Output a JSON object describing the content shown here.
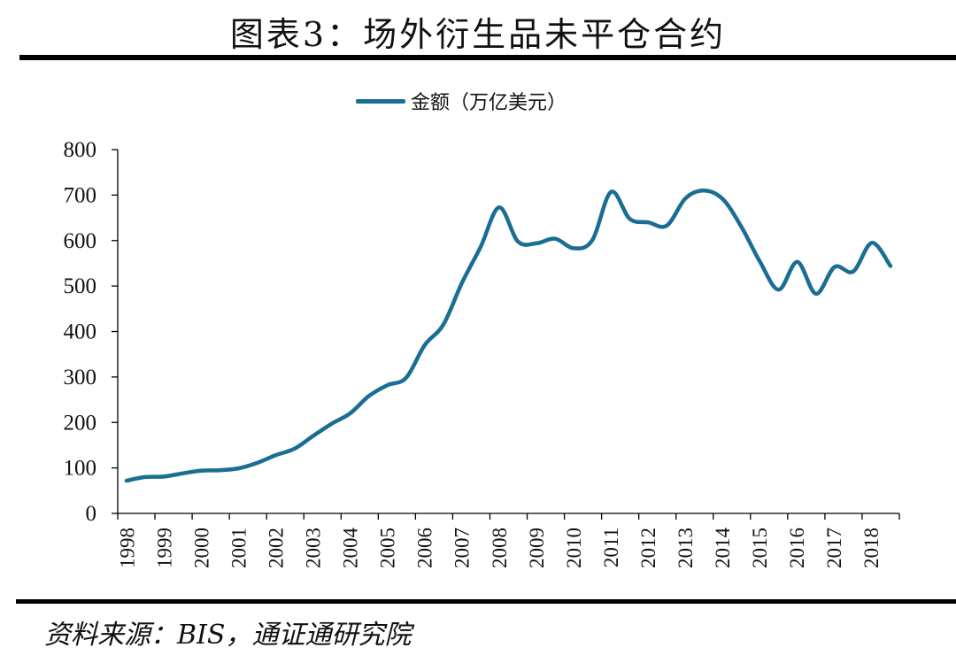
{
  "title": "图表3：场外衍生品未平仓合约",
  "source": "资料来源：BIS，通证通研究院",
  "colors": {
    "line": "#1a6e93",
    "axis": "#000000",
    "text": "#111111"
  },
  "chart_data": {
    "type": "line",
    "title": "图表3：场外衍生品未平仓合约",
    "xlabel": "",
    "ylabel": "",
    "ylim": [
      0,
      800
    ],
    "yticks": [
      0,
      100,
      200,
      300,
      400,
      500,
      600,
      700,
      800
    ],
    "grid": false,
    "legend_position": "top",
    "categories": [
      "1998",
      "1999",
      "2000",
      "2001",
      "2002",
      "2003",
      "2004",
      "2005",
      "2006",
      "2007",
      "2008",
      "2009",
      "2010",
      "2011",
      "2012",
      "2013",
      "2014",
      "2015",
      "2016",
      "2017",
      "2018"
    ],
    "x": [
      "1998H1",
      "1998H2",
      "1999H1",
      "1999H2",
      "2000H1",
      "2000H2",
      "2001H1",
      "2001H2",
      "2002H1",
      "2002H2",
      "2003H1",
      "2003H2",
      "2004H1",
      "2004H2",
      "2005H1",
      "2005H2",
      "2006H1",
      "2006H2",
      "2007H1",
      "2007H2",
      "2008H1",
      "2008H2",
      "2009H1",
      "2009H2",
      "2010H1",
      "2010H2",
      "2011H1",
      "2011H2",
      "2012H1",
      "2012H2",
      "2013H1",
      "2013H2",
      "2014H1",
      "2014H2",
      "2015H1",
      "2015H2",
      "2016H1",
      "2016H2",
      "2017H1",
      "2017H2",
      "2018H1",
      "2018H2"
    ],
    "series": [
      {
        "name": "金额（万亿美元）",
        "values": [
          72,
          80,
          81,
          88,
          94,
          95,
          99,
          111,
          128,
          142,
          170,
          197,
          220,
          258,
          282,
          298,
          370,
          415,
          507,
          586,
          673,
          598,
          594,
          604,
          583,
          601,
          707,
          648,
          640,
          633,
          693,
          710,
          691,
          630,
          553,
          492,
          553,
          483,
          542,
          532,
          595,
          544
        ]
      }
    ]
  }
}
